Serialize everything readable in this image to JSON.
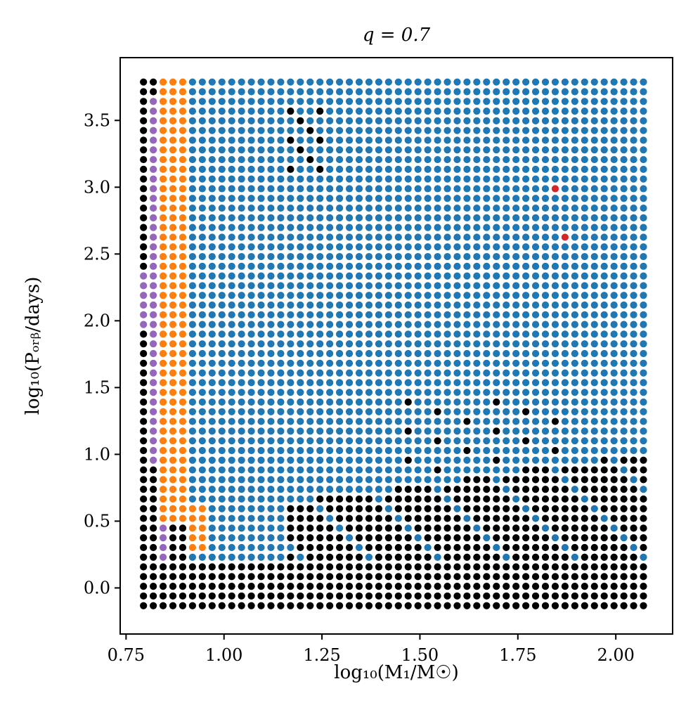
{
  "chart_data": {
    "type": "scatter",
    "title": "q = 0.7",
    "xlabel": "log10(M1/M☉)",
    "ylabel": "log10(Porb/days)",
    "xlim": [
      0.735,
      2.145
    ],
    "ylim": [
      -0.345,
      3.97
    ],
    "xticks": [
      0.75,
      1.0,
      1.25,
      1.5,
      1.75,
      2.0
    ],
    "xtick_labels": [
      "0.75",
      "1.00",
      "1.25",
      "1.50",
      "1.75",
      "2.00"
    ],
    "yticks": [
      0.0,
      0.5,
      1.0,
      1.5,
      2.0,
      2.5,
      3.0,
      3.5
    ],
    "ytick_labels": [
      "0.0",
      "0.5",
      "1.0",
      "1.5",
      "2.0",
      "2.5",
      "3.0",
      "3.5"
    ],
    "grid": false,
    "legend": "none",
    "grid_spec": {
      "x_start": 0.7945,
      "x_step": 0.02502,
      "x_count": 52,
      "y_start": -0.133,
      "y_step": 0.0726,
      "y_count": 55
    },
    "colors": {
      "blue": "#1f77b4",
      "black": "#000000",
      "orange": "#ff7f0e",
      "purple": "#9467bd",
      "red": "#d62728"
    },
    "series": [
      {
        "color": "blue",
        "rule": "default fill of the grid"
      },
      {
        "color": "black",
        "rule": "rows with y <= 0.22 and sparse cluster points"
      },
      {
        "color": "orange",
        "rule": "narrow band near left edge"
      },
      {
        "color": "purple",
        "rule": "leftmost columns"
      },
      {
        "color": "red",
        "points": [
          [
            1.854,
            3.0
          ],
          [
            1.879,
            2.64
          ]
        ]
      }
    ]
  }
}
